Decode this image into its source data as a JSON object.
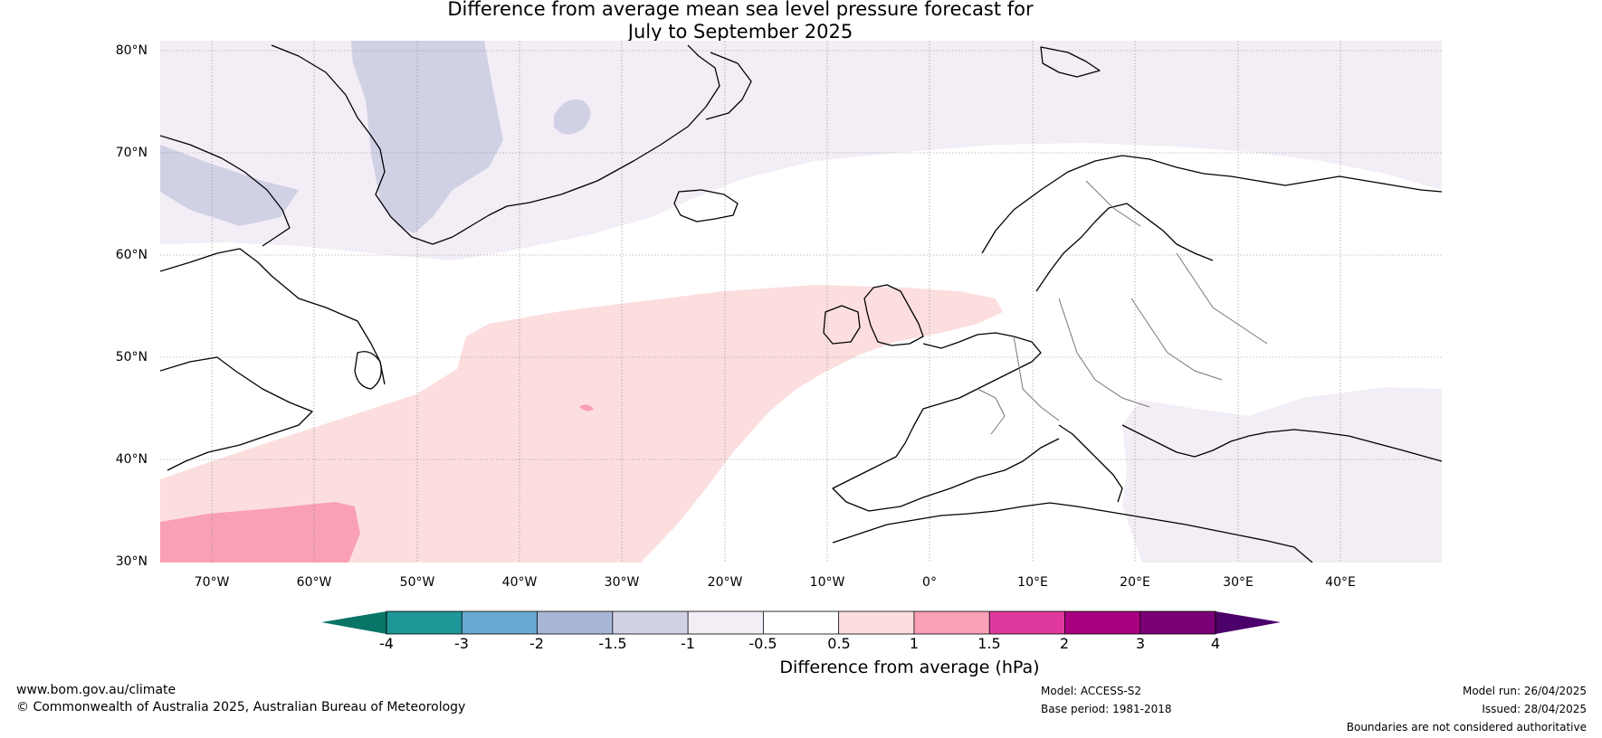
{
  "title_line1": "Difference from average mean sea level pressure forecast for",
  "title_line2": "July to September 2025",
  "lat_ticks": [
    "80°N",
    "70°N",
    "60°N",
    "50°N",
    "40°N",
    "30°N"
  ],
  "lon_ticks": [
    "70°W",
    "60°W",
    "50°W",
    "40°W",
    "30°W",
    "20°W",
    "10°W",
    "0°",
    "10°E",
    "20°E",
    "30°E",
    "40°E"
  ],
  "colorbar": {
    "title": "Difference from average (hPa)",
    "tick_labels": [
      "-4",
      "-3",
      "-2",
      "-1.5",
      "-1",
      "-0.5",
      "0.5",
      "1",
      "1.5",
      "2",
      "3",
      "4"
    ],
    "colors": [
      "#087566",
      "#1f9698",
      "#68a8d0",
      "#a7b6d6",
      "#d0d1e5",
      "#f3edf6",
      "#ffffff",
      "#fcdedf",
      "#f9a0b6",
      "#e0399d",
      "#a9007f",
      "#7a0077",
      "#4c006a"
    ]
  },
  "footer": {
    "url": "www.bom.gov.au/climate",
    "copyright": "© Commonwealth of Australia 2025, Australian Bureau of Meteorology",
    "model": "Model: ACCESS-S2",
    "base_period": "Base period: 1981-2018",
    "model_run": "Model run: 26/04/2025",
    "issued": "Issued: 28/04/2025",
    "disclaimer": "Boundaries are not considered authoritative"
  }
}
